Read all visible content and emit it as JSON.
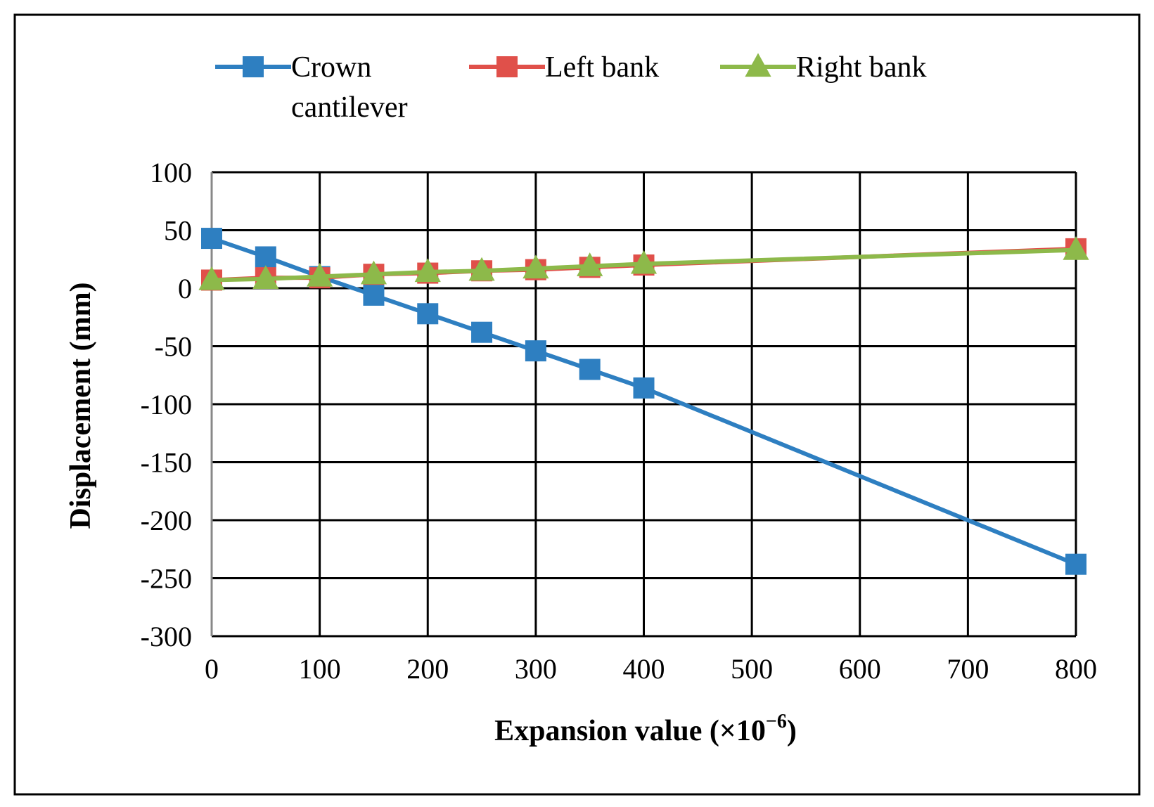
{
  "chart_data": {
    "type": "line",
    "xlabel": "Expansion value (×10",
    "xlabel_sup": "−6",
    "xlabel_close": ")",
    "ylabel": "Displacement (mm)",
    "xlim": [
      0,
      800
    ],
    "ylim": [
      -300,
      100
    ],
    "x_ticks": [
      0,
      100,
      200,
      300,
      400,
      500,
      600,
      700,
      800
    ],
    "y_ticks": [
      100,
      50,
      0,
      -50,
      -100,
      -150,
      -200,
      -250,
      -300
    ],
    "grid": true,
    "legend_position": "top",
    "series": [
      {
        "name": "Crown cantilever",
        "name_lines": [
          "Crown",
          "cantilever"
        ],
        "color": "#2E7FC1",
        "marker": "square",
        "x": [
          0,
          50,
          100,
          150,
          200,
          250,
          300,
          350,
          400,
          800
        ],
        "values": [
          43,
          27,
          10,
          -6,
          -22,
          -38,
          -54,
          -70,
          -86,
          -238
        ]
      },
      {
        "name": "Left bank",
        "name_lines": [
          "Left bank"
        ],
        "color": "#E0504A",
        "marker": "square",
        "x": [
          0,
          50,
          100,
          150,
          200,
          250,
          300,
          350,
          400,
          800
        ],
        "values": [
          7,
          9,
          9,
          12,
          13,
          15,
          16,
          18,
          20,
          34
        ]
      },
      {
        "name": "Right bank",
        "name_lines": [
          "Right bank"
        ],
        "color": "#8DB94A",
        "marker": "triangle",
        "x": [
          0,
          50,
          100,
          150,
          200,
          250,
          300,
          350,
          400,
          800
        ],
        "values": [
          7,
          8,
          10,
          12,
          14,
          15,
          17,
          19,
          21,
          33
        ]
      }
    ]
  }
}
